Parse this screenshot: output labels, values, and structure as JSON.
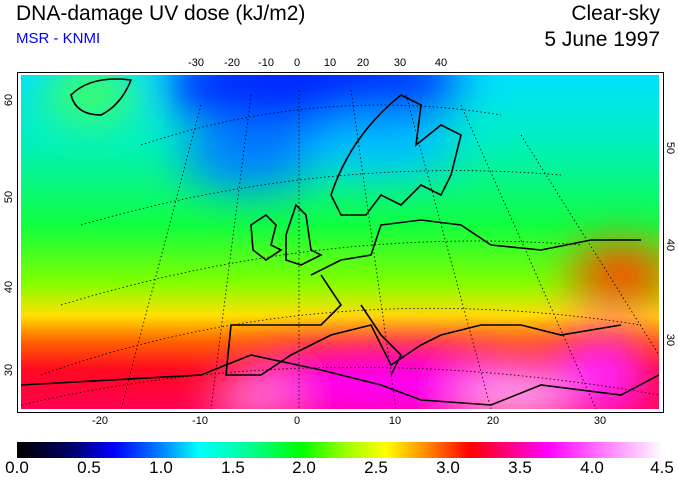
{
  "header": {
    "title": "DNA-damage UV dose (kJ/m2)",
    "source": "MSR - KNMI",
    "condition": "Clear-sky",
    "date": "5 June 1997"
  },
  "axes": {
    "top_lon": [
      "-30",
      "-20",
      "-10",
      "0",
      "10",
      "20",
      "30",
      "40"
    ],
    "bottom_lon": [
      "-20",
      "-10",
      "0",
      "10",
      "20",
      "30"
    ],
    "left_lat": [
      "60",
      "50",
      "40",
      "30"
    ],
    "right_lat": [
      "50",
      "40",
      "30"
    ]
  },
  "colorbar": {
    "min": 0.0,
    "max": 4.5,
    "units": "kJ/m2",
    "labels": [
      "0.0",
      "0.5",
      "1.0",
      "1.5",
      "2.0",
      "2.5",
      "3.0",
      "3.5",
      "4.0",
      "4.5"
    ],
    "colors": [
      "#000000",
      "#0000ff",
      "#00ffff",
      "#00ff00",
      "#ffff00",
      "#ff0000",
      "#ff00ff",
      "#ffffff"
    ]
  }
}
